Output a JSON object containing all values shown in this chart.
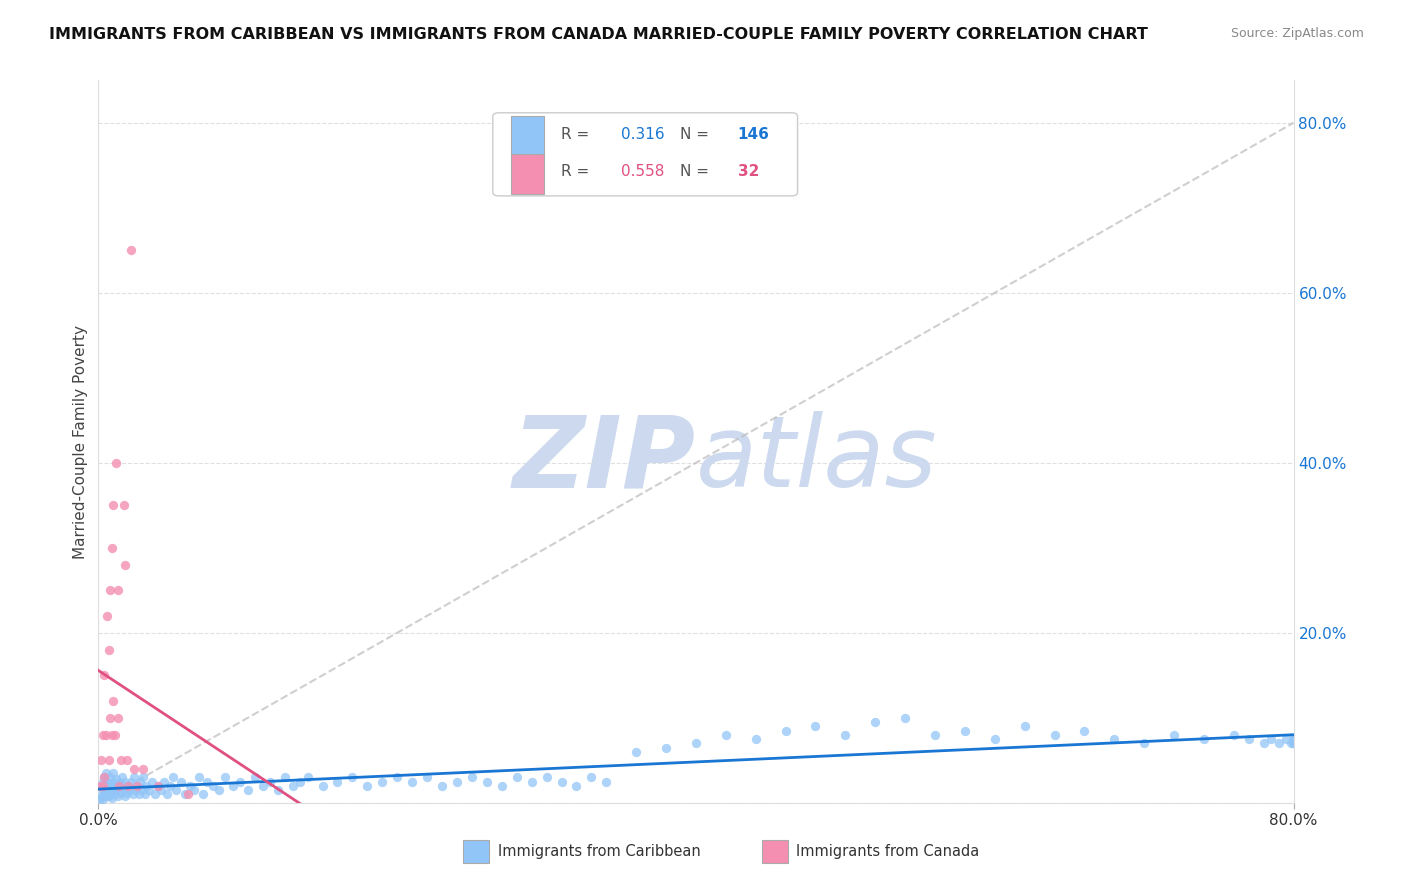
{
  "title": "IMMIGRANTS FROM CARIBBEAN VS IMMIGRANTS FROM CANADA MARRIED-COUPLE FAMILY POVERTY CORRELATION CHART",
  "source": "Source: ZipAtlas.com",
  "ylabel": "Married-Couple Family Poverty",
  "xmin": 0.0,
  "xmax": 0.8,
  "ymin": 0.0,
  "ymax": 0.85,
  "legend_caribbean_R": "0.316",
  "legend_caribbean_N": "146",
  "legend_canada_R": "0.558",
  "legend_canada_N": "32",
  "color_caribbean": "#92c5f7",
  "color_canada": "#f48fb1",
  "color_trendline_caribbean": "#1976d2",
  "color_trendline_canada": "#e05080",
  "color_diagonal": "#bbbbbb",
  "watermark_color": "#ccd9ee",
  "caribbean_x": [
    0.001,
    0.002,
    0.002,
    0.003,
    0.003,
    0.003,
    0.004,
    0.004,
    0.005,
    0.005,
    0.005,
    0.006,
    0.006,
    0.007,
    0.007,
    0.008,
    0.008,
    0.008,
    0.009,
    0.009,
    0.01,
    0.01,
    0.011,
    0.011,
    0.012,
    0.012,
    0.013,
    0.013,
    0.014,
    0.015,
    0.015,
    0.016,
    0.017,
    0.018,
    0.018,
    0.019,
    0.02,
    0.021,
    0.022,
    0.023,
    0.024,
    0.025,
    0.026,
    0.027,
    0.028,
    0.029,
    0.03,
    0.031,
    0.032,
    0.034,
    0.036,
    0.038,
    0.04,
    0.042,
    0.044,
    0.046,
    0.048,
    0.05,
    0.052,
    0.055,
    0.058,
    0.061,
    0.064,
    0.067,
    0.07,
    0.073,
    0.077,
    0.081,
    0.085,
    0.09,
    0.095,
    0.1,
    0.105,
    0.11,
    0.115,
    0.12,
    0.125,
    0.13,
    0.135,
    0.14,
    0.15,
    0.16,
    0.17,
    0.18,
    0.19,
    0.2,
    0.21,
    0.22,
    0.23,
    0.24,
    0.25,
    0.26,
    0.27,
    0.28,
    0.29,
    0.3,
    0.31,
    0.32,
    0.33,
    0.34,
    0.36,
    0.38,
    0.4,
    0.42,
    0.44,
    0.46,
    0.48,
    0.5,
    0.52,
    0.54,
    0.56,
    0.58,
    0.6,
    0.62,
    0.64,
    0.66,
    0.68,
    0.7,
    0.72,
    0.74,
    0.76,
    0.77,
    0.78,
    0.785,
    0.79,
    0.795,
    0.798,
    0.8,
    0.8,
    0.8,
    0.8,
    0.8,
    0.8,
    0.8,
    0.8,
    0.8,
    0.8,
    0.8,
    0.8,
    0.8,
    0.8,
    0.8,
    0.8,
    0.8,
    0.8,
    0.8
  ],
  "caribbean_y": [
    0.005,
    0.008,
    0.02,
    0.005,
    0.015,
    0.025,
    0.01,
    0.03,
    0.008,
    0.02,
    0.035,
    0.012,
    0.025,
    0.008,
    0.018,
    0.01,
    0.022,
    0.03,
    0.006,
    0.015,
    0.025,
    0.035,
    0.01,
    0.02,
    0.015,
    0.028,
    0.008,
    0.018,
    0.025,
    0.012,
    0.022,
    0.03,
    0.015,
    0.008,
    0.025,
    0.012,
    0.02,
    0.015,
    0.025,
    0.01,
    0.03,
    0.015,
    0.02,
    0.01,
    0.025,
    0.015,
    0.03,
    0.01,
    0.02,
    0.015,
    0.025,
    0.01,
    0.02,
    0.015,
    0.025,
    0.01,
    0.02,
    0.03,
    0.015,
    0.025,
    0.01,
    0.02,
    0.015,
    0.03,
    0.01,
    0.025,
    0.02,
    0.015,
    0.03,
    0.02,
    0.025,
    0.015,
    0.03,
    0.02,
    0.025,
    0.015,
    0.03,
    0.02,
    0.025,
    0.03,
    0.02,
    0.025,
    0.03,
    0.02,
    0.025,
    0.03,
    0.025,
    0.03,
    0.02,
    0.025,
    0.03,
    0.025,
    0.02,
    0.03,
    0.025,
    0.03,
    0.025,
    0.02,
    0.03,
    0.025,
    0.06,
    0.065,
    0.07,
    0.08,
    0.075,
    0.085,
    0.09,
    0.08,
    0.095,
    0.1,
    0.08,
    0.085,
    0.075,
    0.09,
    0.08,
    0.085,
    0.075,
    0.07,
    0.08,
    0.075,
    0.08,
    0.075,
    0.07,
    0.075,
    0.07,
    0.075,
    0.07,
    0.075,
    0.07,
    0.075,
    0.07,
    0.075,
    0.07,
    0.075,
    0.07,
    0.075,
    0.07,
    0.075,
    0.07,
    0.075,
    0.07,
    0.075,
    0.07,
    0.075,
    0.07,
    0.075
  ],
  "canada_x": [
    0.001,
    0.002,
    0.003,
    0.003,
    0.004,
    0.004,
    0.005,
    0.006,
    0.007,
    0.007,
    0.008,
    0.008,
    0.009,
    0.009,
    0.01,
    0.01,
    0.011,
    0.012,
    0.013,
    0.013,
    0.014,
    0.015,
    0.017,
    0.018,
    0.019,
    0.02,
    0.022,
    0.024,
    0.026,
    0.03,
    0.04,
    0.06
  ],
  "canada_y": [
    0.02,
    0.05,
    0.08,
    0.02,
    0.15,
    0.03,
    0.08,
    0.22,
    0.05,
    0.18,
    0.1,
    0.25,
    0.08,
    0.3,
    0.12,
    0.35,
    0.08,
    0.4,
    0.25,
    0.1,
    0.02,
    0.05,
    0.35,
    0.28,
    0.05,
    0.02,
    0.65,
    0.04,
    0.02,
    0.04,
    0.02,
    0.01
  ]
}
